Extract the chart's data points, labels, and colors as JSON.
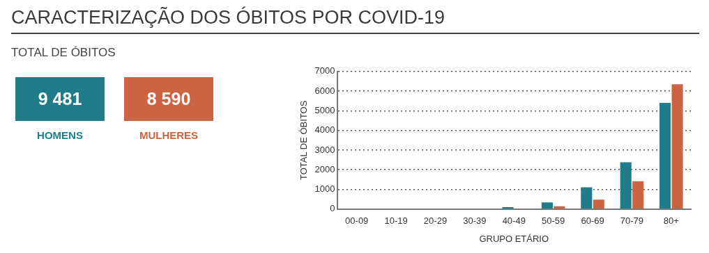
{
  "chart_data": [
    {
      "type": "other",
      "title": "CARACTERIZAÇÃO DOS ÓBITOS POR COVID-19",
      "subtitle": "TOTAL DE ÓBITOS",
      "categories": [
        "HOMENS",
        "MULHERES"
      ],
      "value_labels": [
        "9 481",
        "8 590"
      ],
      "colors": [
        "#1f7d89",
        "#cc6442"
      ]
    },
    {
      "type": "bar",
      "ylabel": "TOTAL DE ÓBITOS",
      "xlabel": "GRUPO ETÁRIO",
      "categories": [
        "00-09",
        "10-19",
        "20-29",
        "30-39",
        "40-49",
        "50-59",
        "60-69",
        "70-79",
        "80+"
      ],
      "series": [
        {
          "color": "#1f7d89",
          "values": [
            0,
            0,
            0,
            0,
            100,
            340,
            1110,
            2380,
            5400
          ]
        },
        {
          "color": "#cc6442",
          "values": [
            0,
            0,
            0,
            0,
            30,
            140,
            480,
            1420,
            6350
          ]
        }
      ],
      "ylim": [
        0,
        7000
      ],
      "yticks": [
        0,
        1000,
        2000,
        3000,
        4000,
        5000,
        6000,
        7000
      ],
      "grid": "y",
      "legend": false
    }
  ]
}
